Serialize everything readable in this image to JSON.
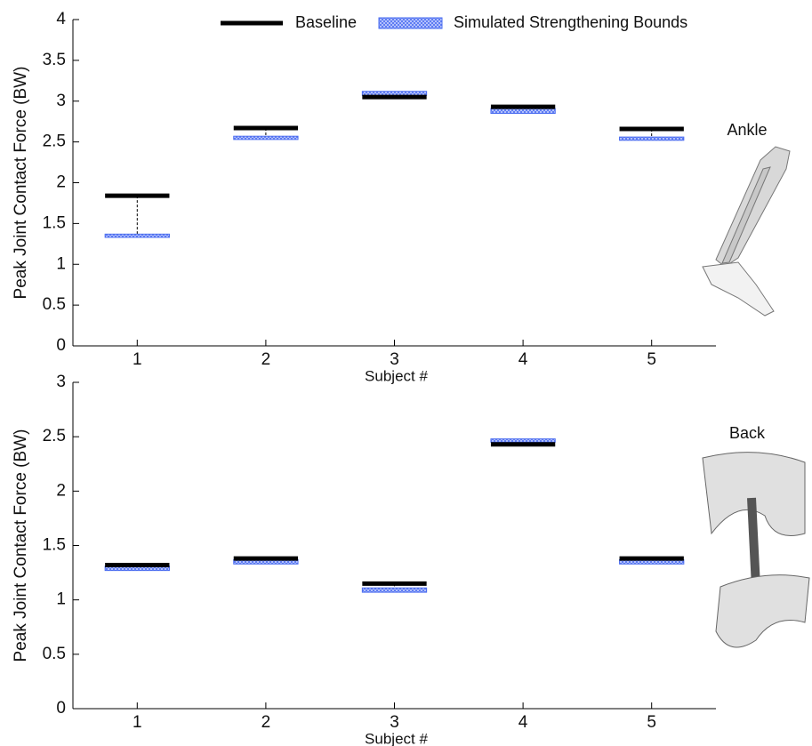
{
  "chart_data": [
    {
      "type": "range",
      "categories": [
        "1",
        "2",
        "3",
        "4",
        "5"
      ],
      "xlabel": "Subject #",
      "ylabel": "Peak Joint Contact Force (BW)",
      "annotation": "Ankle",
      "legend": "top",
      "ylim": [
        0,
        4
      ],
      "yticks": [
        0,
        0.5,
        1,
        1.5,
        2,
        2.5,
        3,
        3.5,
        4
      ],
      "series": [
        {
          "name": "Baseline",
          "color": "#000000",
          "values": [
            1.84,
            2.67,
            3.05,
            2.93,
            2.66
          ]
        },
        {
          "name": "Simulated Strengthening Bounds",
          "color": "#4a6cf0",
          "low": [
            1.33,
            2.53,
            3.07,
            2.85,
            2.52
          ],
          "high": [
            1.37,
            2.57,
            3.12,
            2.91,
            2.56
          ]
        }
      ]
    },
    {
      "type": "range",
      "categories": [
        "1",
        "2",
        "3",
        "4",
        "5"
      ],
      "xlabel": "Subject #",
      "ylabel": "Peak Joint Contact Force (BW)",
      "annotation": "Back",
      "ylim": [
        0,
        3
      ],
      "yticks": [
        0,
        0.5,
        1,
        1.5,
        2,
        2.5,
        3
      ],
      "series": [
        {
          "color": "#000000",
          "values": [
            1.32,
            1.38,
            1.15,
            2.43,
            1.38
          ]
        },
        {
          "color": "#4a6cf0",
          "low": [
            1.27,
            1.33,
            1.07,
            2.45,
            1.33
          ],
          "high": [
            1.31,
            1.37,
            1.11,
            2.48,
            1.37
          ]
        }
      ]
    }
  ]
}
